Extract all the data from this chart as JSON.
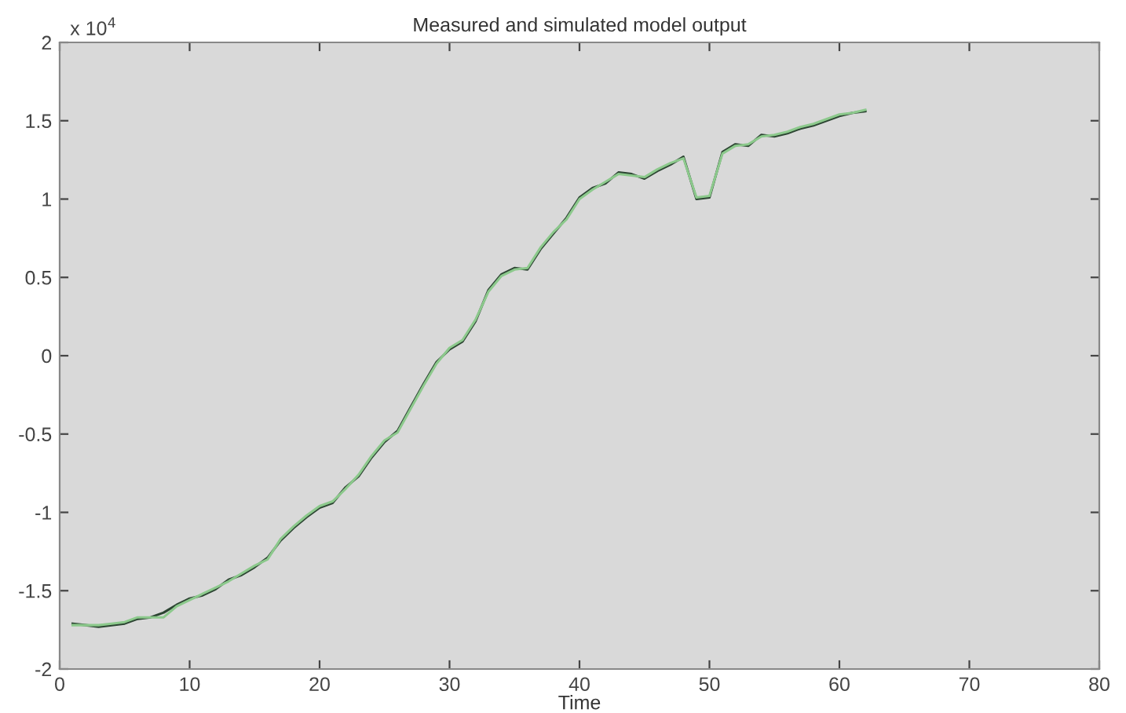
{
  "chart_data": {
    "type": "line",
    "title": "Measured and simulated model output",
    "xlabel": "Time",
    "annotations": [
      "x 10$^{4}$"
    ],
    "x": [
      1,
      2,
      3,
      4,
      5,
      6,
      7,
      8,
      9,
      10,
      11,
      12,
      13,
      14,
      15,
      16,
      17,
      18,
      19,
      20,
      21,
      22,
      23,
      24,
      25,
      26,
      27,
      28,
      29,
      30,
      31,
      32,
      33,
      34,
      35,
      36,
      37,
      38,
      39,
      40,
      41,
      42,
      43,
      44,
      45,
      46,
      47,
      48,
      49,
      50,
      51,
      52,
      53,
      54,
      55,
      56,
      57,
      58,
      59,
      60,
      61,
      62
    ],
    "series": [
      {
        "color": "#2c4432",
        "values": [
          -1.71,
          -1.72,
          -1.73,
          -1.72,
          -1.71,
          -1.68,
          -1.67,
          -1.64,
          -1.59,
          -1.55,
          -1.53,
          -1.49,
          -1.43,
          -1.4,
          -1.35,
          -1.29,
          -1.18,
          -1.1,
          -1.03,
          -0.97,
          -0.94,
          -0.84,
          -0.77,
          -0.65,
          -0.55,
          -0.48,
          -0.33,
          -0.18,
          -0.04,
          0.04,
          0.09,
          0.22,
          0.42,
          0.52,
          0.56,
          0.55,
          0.68,
          0.78,
          0.88,
          1.01,
          1.07,
          1.1,
          1.17,
          1.16,
          1.13,
          1.18,
          1.22,
          1.27,
          1.0,
          1.01,
          1.3,
          1.35,
          1.34,
          1.41,
          1.4,
          1.42,
          1.45,
          1.47,
          1.5,
          1.53,
          1.55,
          1.56
        ]
      },
      {
        "color": "#8cc98c",
        "values": [
          -1.72,
          -1.72,
          -1.72,
          -1.71,
          -1.7,
          -1.67,
          -1.67,
          -1.67,
          -1.6,
          -1.56,
          -1.52,
          -1.48,
          -1.44,
          -1.39,
          -1.34,
          -1.3,
          -1.17,
          -1.09,
          -1.02,
          -0.96,
          -0.93,
          -0.85,
          -0.76,
          -0.64,
          -0.54,
          -0.49,
          -0.34,
          -0.19,
          -0.05,
          0.05,
          0.1,
          0.23,
          0.41,
          0.51,
          0.55,
          0.56,
          0.69,
          0.79,
          0.87,
          1.0,
          1.06,
          1.11,
          1.16,
          1.15,
          1.14,
          1.19,
          1.23,
          1.26,
          1.01,
          1.02,
          1.29,
          1.34,
          1.35,
          1.4,
          1.41,
          1.43,
          1.46,
          1.48,
          1.51,
          1.54,
          1.55,
          1.57
        ]
      }
    ],
    "xlim": [
      0,
      80
    ],
    "xticks": [
      0,
      10,
      20,
      30,
      40,
      50,
      60,
      70,
      80
    ],
    "ylim": [
      -2,
      2
    ],
    "yticks": [
      -2,
      -1.5,
      -1,
      -0.5,
      0,
      0.5,
      1,
      1.5,
      2
    ],
    "grid": false,
    "legend": false
  }
}
